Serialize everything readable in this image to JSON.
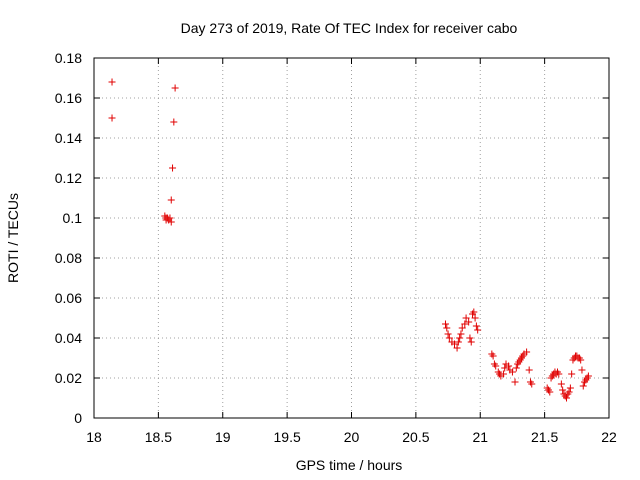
{
  "chart_data": {
    "type": "scatter",
    "title": "Day 273 of 2019, Rate Of TEC Index for receiver cabo",
    "xlabel": "GPS time / hours",
    "ylabel": "ROTI / TECUs",
    "xlim": [
      18,
      22
    ],
    "ylim": [
      0,
      0.18
    ],
    "grid": true,
    "marker": "+",
    "color": "#e00000",
    "xticks": [
      18,
      18.5,
      19,
      19.5,
      20,
      20.5,
      21,
      21.5,
      22
    ],
    "xtick_labels": [
      "18",
      "18.5",
      "19",
      "19.5",
      "20",
      "20.5",
      "21",
      "21.5",
      "22"
    ],
    "yticks": [
      0,
      0.02,
      0.04,
      0.06,
      0.08,
      0.1,
      0.12,
      0.14,
      0.16,
      0.18
    ],
    "ytick_labels": [
      "0",
      "0.02",
      "0.04",
      "0.06",
      "0.08",
      "0.1",
      "0.12",
      "0.14",
      "0.16",
      "0.18"
    ],
    "series": [
      {
        "name": "ROTI",
        "points": [
          [
            18.14,
            0.168
          ],
          [
            18.14,
            0.15
          ],
          [
            18.63,
            0.165
          ],
          [
            18.62,
            0.148
          ],
          [
            18.61,
            0.125
          ],
          [
            18.6,
            0.109
          ],
          [
            18.55,
            0.101
          ],
          [
            18.56,
            0.1
          ],
          [
            18.57,
            0.1
          ],
          [
            18.58,
            0.099
          ],
          [
            18.59,
            0.1
          ],
          [
            18.6,
            0.098
          ],
          [
            18.56,
            0.099
          ],
          [
            20.73,
            0.047
          ],
          [
            20.74,
            0.045
          ],
          [
            20.75,
            0.042
          ],
          [
            20.76,
            0.04
          ],
          [
            20.78,
            0.038
          ],
          [
            20.8,
            0.037
          ],
          [
            20.82,
            0.035
          ],
          [
            20.83,
            0.038
          ],
          [
            20.84,
            0.04
          ],
          [
            20.85,
            0.042
          ],
          [
            20.86,
            0.045
          ],
          [
            20.88,
            0.047
          ],
          [
            20.89,
            0.05
          ],
          [
            20.91,
            0.048
          ],
          [
            20.92,
            0.04
          ],
          [
            20.93,
            0.038
          ],
          [
            20.94,
            0.052
          ],
          [
            20.95,
            0.053
          ],
          [
            20.96,
            0.05
          ],
          [
            20.97,
            0.046
          ],
          [
            20.98,
            0.044
          ],
          [
            21.09,
            0.032
          ],
          [
            21.1,
            0.031
          ],
          [
            21.11,
            0.027
          ],
          [
            21.12,
            0.026
          ],
          [
            21.14,
            0.023
          ],
          [
            21.15,
            0.022
          ],
          [
            21.16,
            0.021
          ],
          [
            21.18,
            0.022
          ],
          [
            21.19,
            0.025
          ],
          [
            21.2,
            0.027
          ],
          [
            21.22,
            0.026
          ],
          [
            21.23,
            0.024
          ],
          [
            21.25,
            0.023
          ],
          [
            21.27,
            0.018
          ],
          [
            21.28,
            0.025
          ],
          [
            21.29,
            0.027
          ],
          [
            21.3,
            0.028
          ],
          [
            21.31,
            0.029
          ],
          [
            21.32,
            0.03
          ],
          [
            21.33,
            0.031
          ],
          [
            21.34,
            0.032
          ],
          [
            21.36,
            0.033
          ],
          [
            21.38,
            0.024
          ],
          [
            21.39,
            0.018
          ],
          [
            21.4,
            0.017
          ],
          [
            21.52,
            0.015
          ],
          [
            21.53,
            0.014
          ],
          [
            21.54,
            0.013
          ],
          [
            21.55,
            0.02
          ],
          [
            21.56,
            0.021
          ],
          [
            21.57,
            0.022
          ],
          [
            21.58,
            0.023
          ],
          [
            21.59,
            0.022
          ],
          [
            21.6,
            0.023
          ],
          [
            21.61,
            0.022
          ],
          [
            21.63,
            0.017
          ],
          [
            21.64,
            0.014
          ],
          [
            21.65,
            0.012
          ],
          [
            21.66,
            0.011
          ],
          [
            21.67,
            0.01
          ],
          [
            21.68,
            0.012
          ],
          [
            21.69,
            0.013
          ],
          [
            21.7,
            0.015
          ],
          [
            21.71,
            0.022
          ],
          [
            21.72,
            0.029
          ],
          [
            21.73,
            0.03
          ],
          [
            21.74,
            0.031
          ],
          [
            21.75,
            0.031
          ],
          [
            21.76,
            0.03
          ],
          [
            21.77,
            0.03
          ],
          [
            21.78,
            0.029
          ],
          [
            21.79,
            0.024
          ],
          [
            21.8,
            0.016
          ],
          [
            21.81,
            0.018
          ],
          [
            21.82,
            0.019
          ],
          [
            21.83,
            0.02
          ],
          [
            21.84,
            0.021
          ]
        ]
      }
    ]
  }
}
